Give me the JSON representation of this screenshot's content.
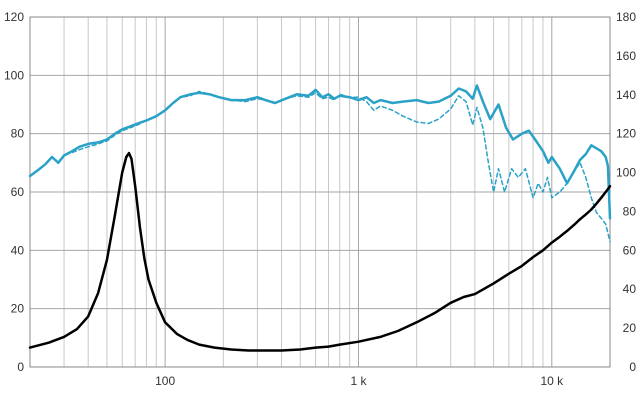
{
  "chart_data": {
    "type": "line",
    "x_scale": "log",
    "xlim": [
      20,
      20000
    ],
    "ylim_left": [
      0,
      120
    ],
    "ylim_right": [
      0,
      180
    ],
    "x_ticks": [
      {
        "value": 100,
        "label": "100"
      },
      {
        "value": 1000,
        "label": "1 k"
      },
      {
        "value": 10000,
        "label": "10 k"
      }
    ],
    "y_left_ticks": [
      0,
      20,
      40,
      60,
      80,
      100,
      120
    ],
    "y_right_ticks": [
      0,
      20,
      40,
      60,
      80,
      100,
      120,
      140,
      160,
      180
    ],
    "grid": true,
    "legend": "none",
    "series": [
      {
        "axis": "left",
        "style": "solid",
        "color": "#2aa2c8",
        "points": [
          [
            20,
            65.5
          ],
          [
            22,
            67.5
          ],
          [
            24,
            69.5
          ],
          [
            26,
            72
          ],
          [
            28,
            70
          ],
          [
            30,
            72.5
          ],
          [
            33,
            74
          ],
          [
            36,
            75.5
          ],
          [
            40,
            76.5
          ],
          [
            45,
            77
          ],
          [
            50,
            78
          ],
          [
            55,
            80
          ],
          [
            60,
            81.5
          ],
          [
            66,
            82.5
          ],
          [
            72,
            83.5
          ],
          [
            80,
            84.5
          ],
          [
            90,
            86
          ],
          [
            100,
            88
          ],
          [
            110,
            90.5
          ],
          [
            120,
            92.5
          ],
          [
            135,
            93.5
          ],
          [
            150,
            94
          ],
          [
            170,
            93.5
          ],
          [
            190,
            92.5
          ],
          [
            220,
            91.5
          ],
          [
            260,
            91.5
          ],
          [
            300,
            92.5
          ],
          [
            330,
            91.5
          ],
          [
            370,
            90.5
          ],
          [
            420,
            92
          ],
          [
            480,
            93.5
          ],
          [
            550,
            93
          ],
          [
            600,
            95
          ],
          [
            650,
            92.5
          ],
          [
            700,
            93.5
          ],
          [
            750,
            92
          ],
          [
            800,
            93
          ],
          [
            900,
            92.5
          ],
          [
            1000,
            91.5
          ],
          [
            1100,
            92.5
          ],
          [
            1200,
            90.5
          ],
          [
            1300,
            91.5
          ],
          [
            1500,
            90.5
          ],
          [
            1700,
            91
          ],
          [
            2000,
            91.5
          ],
          [
            2300,
            90.5
          ],
          [
            2600,
            91
          ],
          [
            3000,
            93
          ],
          [
            3300,
            95.5
          ],
          [
            3600,
            94.5
          ],
          [
            3900,
            92
          ],
          [
            4100,
            96.5
          ],
          [
            4400,
            91
          ],
          [
            4800,
            85
          ],
          [
            5300,
            90
          ],
          [
            5800,
            82
          ],
          [
            6300,
            78
          ],
          [
            7000,
            80
          ],
          [
            7600,
            81
          ],
          [
            8200,
            78
          ],
          [
            9000,
            74
          ],
          [
            9600,
            70
          ],
          [
            10000,
            72
          ],
          [
            11000,
            68
          ],
          [
            12000,
            63
          ],
          [
            13000,
            67
          ],
          [
            14000,
            71
          ],
          [
            15000,
            73
          ],
          [
            16000,
            76
          ],
          [
            17000,
            75
          ],
          [
            18000,
            74
          ],
          [
            19000,
            72
          ],
          [
            19500,
            69
          ],
          [
            20000,
            51
          ]
        ]
      },
      {
        "axis": "left",
        "style": "dashed",
        "color": "#2aa2c8",
        "points": [
          [
            20,
            65.5
          ],
          [
            22,
            67.5
          ],
          [
            24,
            69.5
          ],
          [
            26,
            72
          ],
          [
            28,
            70
          ],
          [
            30,
            72.5
          ],
          [
            33,
            73.5
          ],
          [
            36,
            74.5
          ],
          [
            40,
            75.5
          ],
          [
            45,
            76.5
          ],
          [
            50,
            77.5
          ],
          [
            55,
            79.5
          ],
          [
            60,
            81
          ],
          [
            66,
            82
          ],
          [
            72,
            83
          ],
          [
            80,
            84.5
          ],
          [
            90,
            86
          ],
          [
            100,
            88
          ],
          [
            110,
            90.5
          ],
          [
            120,
            92.5
          ],
          [
            135,
            93
          ],
          [
            150,
            94.5
          ],
          [
            170,
            93.5
          ],
          [
            190,
            92.5
          ],
          [
            220,
            91.5
          ],
          [
            260,
            91
          ],
          [
            300,
            92
          ],
          [
            330,
            91.5
          ],
          [
            370,
            90.5
          ],
          [
            420,
            92
          ],
          [
            480,
            93
          ],
          [
            550,
            92.5
          ],
          [
            600,
            94
          ],
          [
            650,
            92
          ],
          [
            700,
            92.5
          ],
          [
            750,
            91.5
          ],
          [
            800,
            93.5
          ],
          [
            900,
            92.5
          ],
          [
            1000,
            92.5
          ],
          [
            1100,
            91
          ],
          [
            1200,
            88
          ],
          [
            1300,
            89.5
          ],
          [
            1500,
            88
          ],
          [
            1700,
            86
          ],
          [
            2000,
            84
          ],
          [
            2300,
            83.5
          ],
          [
            2600,
            85
          ],
          [
            3000,
            88.5
          ],
          [
            3300,
            93
          ],
          [
            3600,
            91
          ],
          [
            3900,
            83
          ],
          [
            4100,
            89
          ],
          [
            4400,
            82
          ],
          [
            4700,
            70
          ],
          [
            5000,
            60
          ],
          [
            5300,
            68
          ],
          [
            5700,
            60
          ],
          [
            6200,
            68
          ],
          [
            6700,
            65
          ],
          [
            7300,
            68
          ],
          [
            8000,
            58
          ],
          [
            8500,
            63
          ],
          [
            9000,
            60
          ],
          [
            9500,
            65
          ],
          [
            10000,
            58
          ],
          [
            11000,
            60
          ],
          [
            12000,
            63
          ],
          [
            13000,
            67
          ],
          [
            14000,
            70
          ],
          [
            15000,
            65
          ],
          [
            16000,
            58
          ],
          [
            17000,
            53
          ],
          [
            18000,
            51
          ],
          [
            19000,
            49
          ],
          [
            20000,
            43
          ]
        ]
      },
      {
        "axis": "right",
        "style": "solid",
        "color": "#000000",
        "points": [
          [
            20,
            10
          ],
          [
            25,
            12.5
          ],
          [
            30,
            15.5
          ],
          [
            35,
            19.5
          ],
          [
            40,
            26
          ],
          [
            45,
            38
          ],
          [
            50,
            55
          ],
          [
            55,
            78
          ],
          [
            60,
            100
          ],
          [
            63,
            108
          ],
          [
            65,
            110
          ],
          [
            67,
            107
          ],
          [
            70,
            93
          ],
          [
            74,
            72
          ],
          [
            78,
            56
          ],
          [
            82,
            45
          ],
          [
            90,
            33
          ],
          [
            100,
            23
          ],
          [
            115,
            17
          ],
          [
            130,
            14
          ],
          [
            150,
            11.5
          ],
          [
            180,
            10
          ],
          [
            220,
            9
          ],
          [
            270,
            8.5
          ],
          [
            330,
            8.5
          ],
          [
            400,
            8.5
          ],
          [
            500,
            9
          ],
          [
            600,
            10
          ],
          [
            700,
            10.5
          ],
          [
            800,
            11.5
          ],
          [
            1000,
            13
          ],
          [
            1300,
            15.5
          ],
          [
            1600,
            18.5
          ],
          [
            2000,
            23
          ],
          [
            2500,
            28
          ],
          [
            3000,
            33
          ],
          [
            3500,
            36
          ],
          [
            4000,
            37.5
          ],
          [
            5000,
            43
          ],
          [
            6000,
            48
          ],
          [
            7000,
            52
          ],
          [
            8000,
            56.5
          ],
          [
            9000,
            60
          ],
          [
            10000,
            64
          ],
          [
            11000,
            67
          ],
          [
            12000,
            70
          ],
          [
            13000,
            73
          ],
          [
            14000,
            76
          ],
          [
            15000,
            78.5
          ],
          [
            16000,
            81
          ],
          [
            17000,
            84
          ],
          [
            18000,
            87
          ],
          [
            19000,
            90
          ],
          [
            20000,
            93
          ]
        ]
      }
    ]
  }
}
